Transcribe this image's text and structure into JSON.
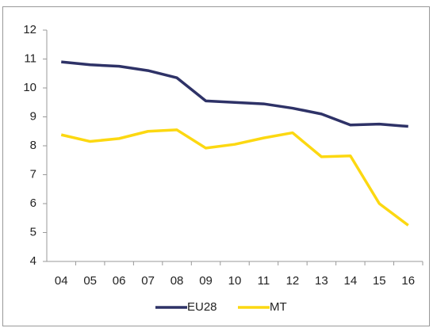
{
  "chart_data": {
    "type": "line",
    "categories": [
      "04",
      "05",
      "06",
      "07",
      "08",
      "09",
      "10",
      "11",
      "12",
      "13",
      "14",
      "15",
      "16"
    ],
    "series": [
      {
        "name": "EU28",
        "color": "#2e3267",
        "values": [
          10.9,
          10.8,
          10.75,
          10.6,
          10.35,
          9.55,
          9.5,
          9.45,
          9.3,
          9.1,
          8.72,
          8.75,
          8.67
        ]
      },
      {
        "name": "MT",
        "color": "#fcd811",
        "values": [
          8.38,
          8.15,
          8.25,
          8.5,
          8.55,
          7.92,
          8.05,
          8.27,
          8.45,
          7.62,
          7.65,
          6.0,
          5.25
        ]
      }
    ],
    "ylim": [
      4,
      12
    ],
    "yticks": [
      4,
      5,
      6,
      7,
      8,
      9,
      10,
      11,
      12
    ],
    "grid": false,
    "legend": "bottom"
  }
}
